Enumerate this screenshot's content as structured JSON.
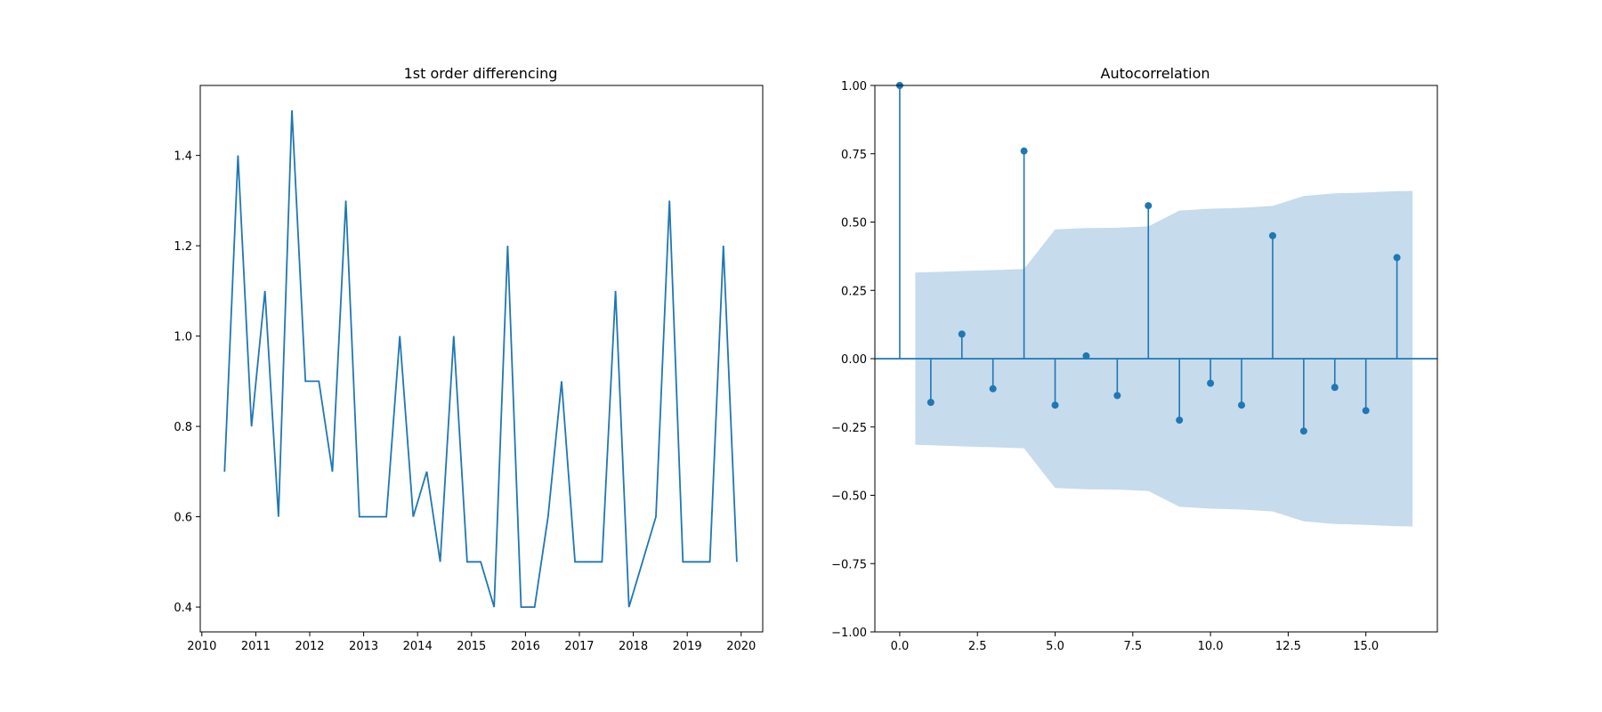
{
  "colors": {
    "series": "#1f77b4",
    "band": "#c6dbec",
    "axes": "#000000",
    "background": "#ffffff"
  },
  "chart_data": [
    {
      "type": "line",
      "title": "1st order differencing",
      "xlabel": "",
      "ylabel": "",
      "xlim": [
        2009.97,
        2020.4
      ],
      "ylim": [
        0.345,
        1.555
      ],
      "x_ticks": [
        2010,
        2011,
        2012,
        2013,
        2014,
        2015,
        2016,
        2017,
        2018,
        2019,
        2020
      ],
      "x_tick_labels": [
        "2010",
        "2011",
        "2012",
        "2013",
        "2014",
        "2015",
        "2016",
        "2017",
        "2018",
        "2019",
        "2020"
      ],
      "y_ticks": [
        0.4,
        0.6,
        0.8,
        1.0,
        1.2,
        1.4
      ],
      "y_tick_labels": [
        "0.4",
        "0.6",
        "0.8",
        "1.0",
        "1.2",
        "1.4"
      ],
      "grid": false,
      "series": [
        {
          "x": [
            2010.42,
            2010.67,
            2010.92,
            2011.17,
            2011.42,
            2011.67,
            2011.92,
            2012.17,
            2012.42,
            2012.67,
            2012.92,
            2013.17,
            2013.42,
            2013.67,
            2013.92,
            2014.17,
            2014.42,
            2014.67,
            2014.92,
            2015.17,
            2015.42,
            2015.67,
            2015.92,
            2016.17,
            2016.42,
            2016.67,
            2016.92,
            2017.17,
            2017.42,
            2017.67,
            2017.92,
            2018.17,
            2018.42,
            2018.67,
            2018.92,
            2019.17,
            2019.42,
            2019.67,
            2019.92
          ],
          "y": [
            0.7,
            1.4,
            0.8,
            1.1,
            0.6,
            1.5,
            0.9,
            0.9,
            0.7,
            1.3,
            0.6,
            0.6,
            0.6,
            1.0,
            0.6,
            0.7,
            0.5,
            1.0,
            0.5,
            0.5,
            0.4,
            1.2,
            0.4,
            0.4,
            0.6,
            0.9,
            0.5,
            0.5,
            0.5,
            1.1,
            0.4,
            0.5,
            0.6,
            1.3,
            0.5,
            0.5,
            0.5,
            1.2,
            0.5
          ]
        }
      ]
    },
    {
      "type": "stem",
      "title": "Autocorrelation",
      "xlabel": "",
      "ylabel": "",
      "xlim": [
        -0.8,
        17.3
      ],
      "ylim": [
        -1.0,
        1.0
      ],
      "x_ticks": [
        0.0,
        2.5,
        5.0,
        7.5,
        10.0,
        12.5,
        15.0
      ],
      "x_tick_labels": [
        "0.0",
        "2.5",
        "5.0",
        "7.5",
        "10.0",
        "12.5",
        "15.0"
      ],
      "y_ticks": [
        -1.0,
        -0.75,
        -0.5,
        -0.25,
        0.0,
        0.25,
        0.5,
        0.75,
        1.0
      ],
      "y_tick_labels": [
        "−1.00",
        "−0.75",
        "−0.50",
        "−0.25",
        "0.00",
        "0.25",
        "0.50",
        "0.75",
        "1.00"
      ],
      "grid": false,
      "lags": [
        0,
        1,
        2,
        3,
        4,
        5,
        6,
        7,
        8,
        9,
        10,
        11,
        12,
        13,
        14,
        15,
        16
      ],
      "values": [
        1.0,
        -0.16,
        0.09,
        -0.11,
        0.76,
        -0.17,
        0.01,
        -0.135,
        0.56,
        -0.225,
        -0.09,
        -0.17,
        0.45,
        -0.265,
        -0.105,
        -0.19,
        0.37
      ],
      "confidence_band": {
        "lags": [
          0.5,
          1,
          2,
          3,
          4,
          5,
          6,
          7,
          8,
          9,
          10,
          11,
          12,
          13,
          14,
          15,
          16,
          16.5
        ],
        "upper": [
          0.315,
          0.317,
          0.321,
          0.324,
          0.328,
          0.473,
          0.478,
          0.479,
          0.484,
          0.542,
          0.549,
          0.552,
          0.559,
          0.595,
          0.605,
          0.608,
          0.613,
          0.614
        ]
      }
    }
  ]
}
